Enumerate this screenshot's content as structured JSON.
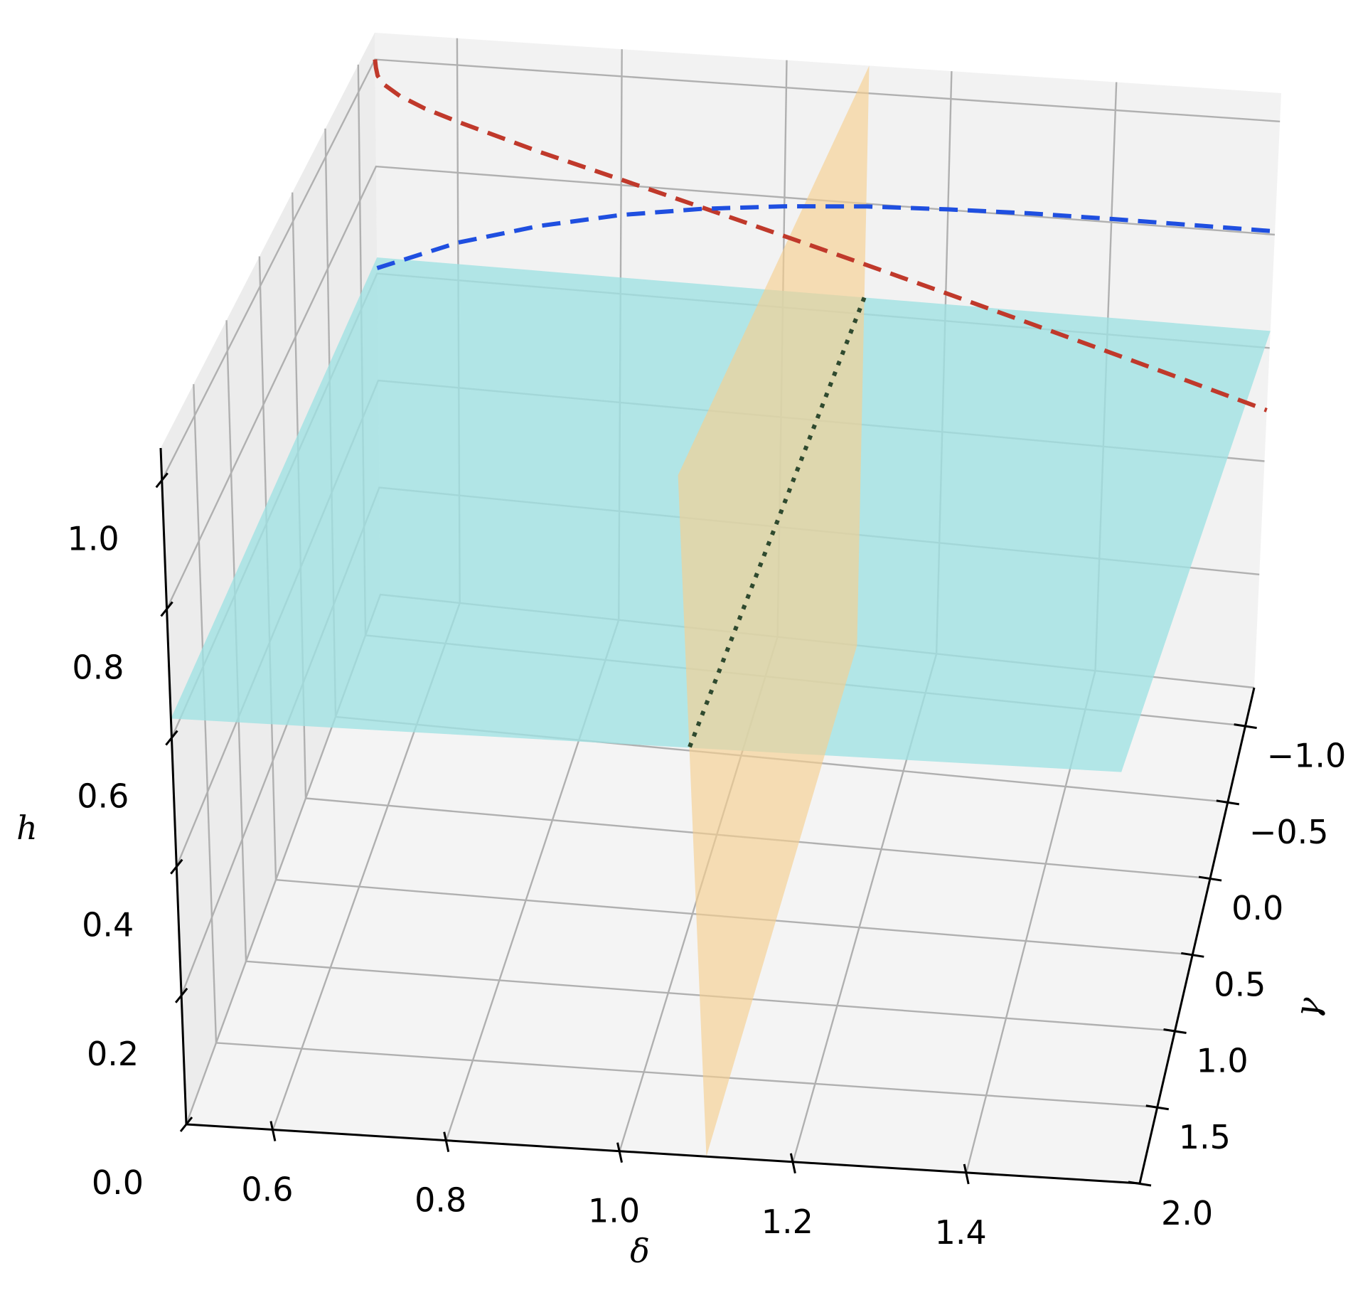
{
  "chart_data": {
    "type": "3d-surface",
    "xlabel": "δ",
    "ylabel": "γ",
    "zlabel": "h",
    "xlim": [
      0.5,
      1.6
    ],
    "ylim": [
      -1.25,
      2.0
    ],
    "zlim": [
      0.0,
      1.05
    ],
    "x_ticks": [
      0.6,
      0.8,
      1.0,
      1.2,
      1.4
    ],
    "y_ticks": [
      -1.0,
      -0.5,
      0.0,
      0.5,
      1.0,
      1.5,
      2.0
    ],
    "z_ticks": [
      0.0,
      0.2,
      0.4,
      0.6,
      0.8,
      1.0
    ],
    "x_tick_labels": [
      "0.6",
      "0.8",
      "1.0",
      "1.2",
      "1.4"
    ],
    "y_tick_labels": [
      "−1.0",
      "−0.5",
      "0.0",
      "0.5",
      "1.0",
      "1.5",
      "2.0"
    ],
    "z_tick_labels": [
      "0.0",
      "0.2",
      "0.4",
      "0.6",
      "0.8",
      "1.0"
    ],
    "grid": true,
    "surfaces": [
      {
        "kind": "horizontal-plane",
        "z": 0.63,
        "x_range": [
          0.5,
          1.6
        ],
        "y_range": [
          -1.25,
          2.0
        ],
        "color": "#9fe2e3"
      },
      {
        "kind": "vertical-plane",
        "x": 1.1,
        "y_range": [
          -1.25,
          2.0
        ],
        "z_range": [
          0.0,
          1.05
        ],
        "color": "#f6d090"
      }
    ],
    "series": [
      {
        "style": "dashed",
        "color": "#c0392b",
        "delta": [
          0.5,
          0.501,
          0.503,
          0.51,
          0.53,
          0.56,
          0.6,
          0.7,
          0.8,
          0.9,
          1.0,
          1.1,
          1.2,
          1.3,
          1.4,
          1.5,
          1.6
        ],
        "h": [
          1.0,
          0.985,
          0.97,
          0.955,
          0.935,
          0.915,
          0.895,
          0.85,
          0.81,
          0.77,
          0.73,
          0.69,
          0.65,
          0.61,
          0.57,
          0.53,
          0.49
        ],
        "gamma_const": -1.25
      },
      {
        "style": "dashed",
        "color": "#1f4fe0",
        "delta": [
          0.5,
          0.6,
          0.7,
          0.8,
          0.9,
          1.0,
          1.1,
          1.2,
          1.3,
          1.4,
          1.5,
          1.6
        ],
        "h": [
          0.61,
          0.67,
          0.713,
          0.745,
          0.768,
          0.784,
          0.795,
          0.801,
          0.805,
          0.806,
          0.806,
          0.806
        ],
        "gamma_const": -1.25
      },
      {
        "style": "dotted",
        "color": "#2f4a2f",
        "delta_const": 1.1,
        "gamma": [
          -1.25,
          2.0
        ],
        "h": [
          0.63,
          0.63
        ]
      }
    ]
  }
}
